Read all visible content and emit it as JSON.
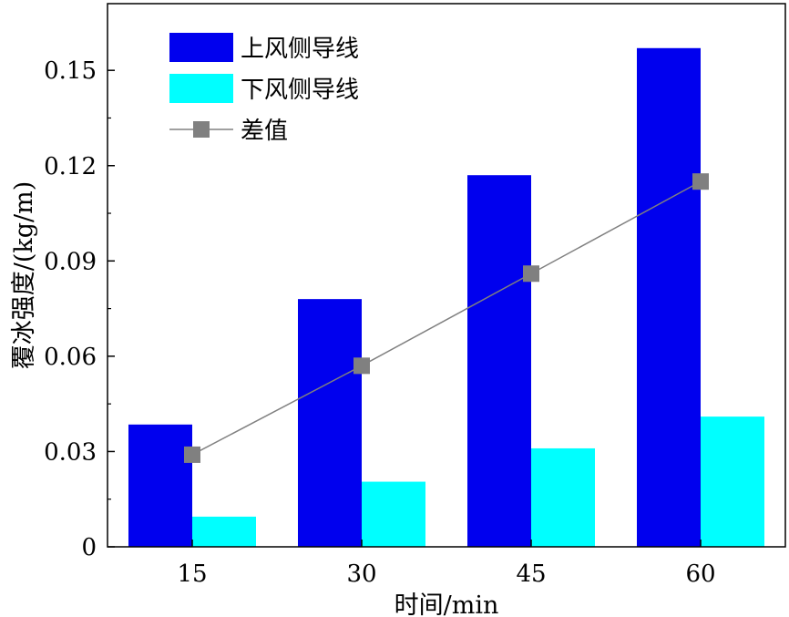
{
  "chart_data": {
    "type": "bar",
    "categories": [
      "15",
      "30",
      "45",
      "60"
    ],
    "series": [
      {
        "name": "上风侧导线",
        "kind": "bar",
        "color": "#0000ee",
        "values": [
          0.0385,
          0.078,
          0.117,
          0.157
        ]
      },
      {
        "name": "下风侧导线",
        "kind": "bar",
        "color": "#00ffff",
        "values": [
          0.0095,
          0.0205,
          0.031,
          0.041
        ]
      },
      {
        "name": "差值",
        "kind": "line",
        "color": "#808080",
        "marker": "square",
        "values": [
          0.029,
          0.057,
          0.086,
          0.115
        ]
      }
    ],
    "xlabel": "时间/min",
    "ylabel": "覆冰强度/(kg/m)",
    "ylim": [
      0,
      0.171
    ],
    "yticks": [
      0,
      0.03,
      0.06,
      0.09,
      0.12,
      0.15
    ],
    "ytick_labels": [
      "0",
      "0.03",
      "0.06",
      "0.09",
      "0.12",
      "0.15"
    ],
    "legend_position": "top-left",
    "grid": false
  }
}
